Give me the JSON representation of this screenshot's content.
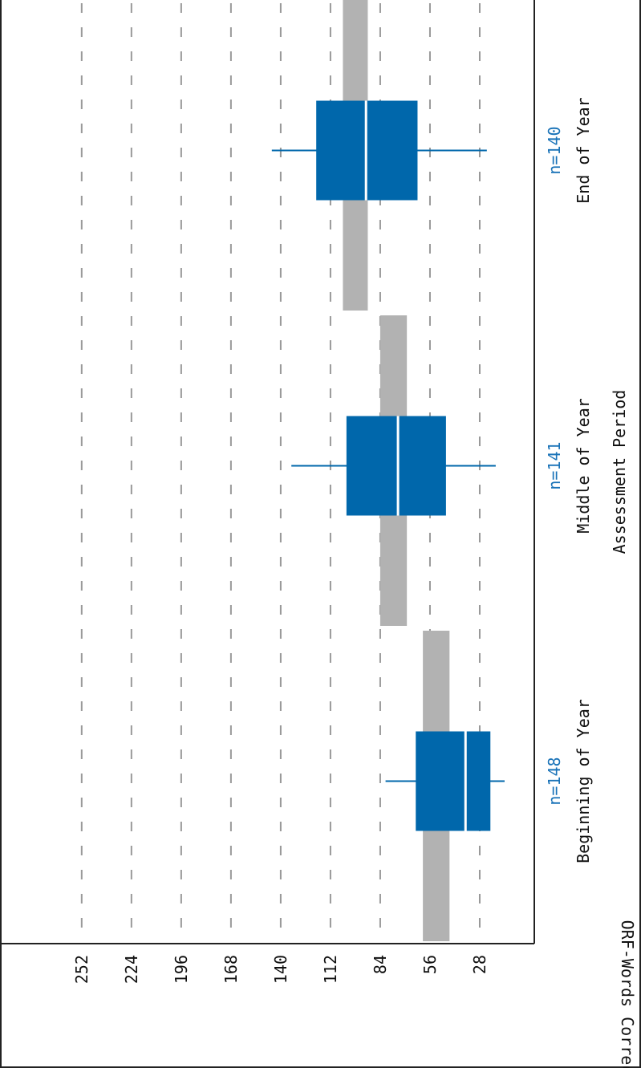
{
  "chart_data": {
    "type": "box",
    "xlabel": "Assessment Period",
    "ylabel": "ORF-Words Correct",
    "ylim": [
      0,
      280
    ],
    "y_ticks": [
      28,
      56,
      84,
      112,
      140,
      168,
      196,
      224,
      252
    ],
    "grid": true,
    "categories": [
      "Beginning of Year",
      "Middle of Year",
      "End of Year"
    ],
    "counts": [
      "n=148",
      "n=141",
      "n=140"
    ],
    "benchmark_bands": [
      {
        "category": "Beginning of Year",
        "low": 45,
        "high": 60
      },
      {
        "category": "Middle of Year",
        "low": 69,
        "high": 84
      },
      {
        "category": "End of Year",
        "low": 91,
        "high": 105
      }
    ],
    "boxes": [
      {
        "category": "Beginning of Year",
        "whisker_low": 14,
        "q1": 22,
        "median": 36,
        "q3": 64,
        "whisker_high": 81
      },
      {
        "category": "Middle of Year",
        "whisker_low": 19,
        "q1": 47,
        "median": 74,
        "q3": 103,
        "whisker_high": 134
      },
      {
        "category": "End of Year",
        "whisker_low": 24,
        "q1": 63,
        "median": 92,
        "q3": 120,
        "whisker_high": 145
      }
    ],
    "colors": {
      "box": "#0067ab",
      "band": "#b2b2b2",
      "count_label": "#1a73b8",
      "grid": "#999999"
    }
  }
}
